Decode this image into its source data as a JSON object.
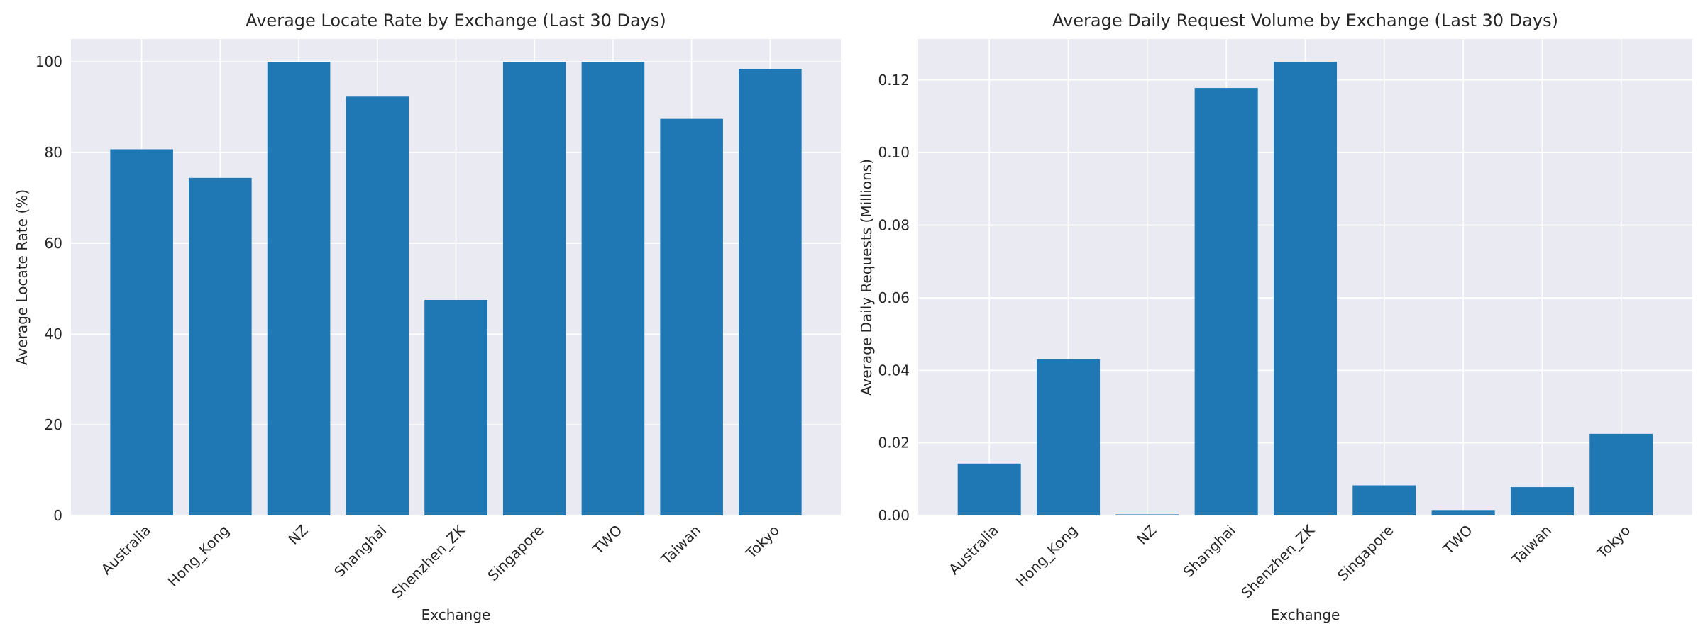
{
  "chart_data": [
    {
      "type": "bar",
      "title": "Average Locate Rate by Exchange (Last 30 Days)",
      "xlabel": "Exchange",
      "ylabel": "Average Locate Rate (%)",
      "categories": [
        "Australia",
        "Hong_Kong",
        "NZ",
        "Shanghai",
        "Shenzhen_ZK",
        "Singapore",
        "TWO",
        "Taiwan",
        "Tokyo"
      ],
      "values": [
        80.7,
        74.4,
        100.0,
        92.3,
        47.5,
        100.0,
        100.0,
        87.4,
        98.4
      ],
      "ylim": [
        0,
        105
      ],
      "yticks": [
        0,
        20,
        40,
        60,
        80,
        100
      ],
      "ytick_labels": [
        "0",
        "20",
        "40",
        "60",
        "80",
        "100"
      ],
      "grid": true,
      "bar_color": "#1f77b4"
    },
    {
      "type": "bar",
      "title": "Average Daily Request Volume by Exchange (Last 30 Days)",
      "xlabel": "Exchange",
      "ylabel": "Average Daily Requests (Millions)",
      "categories": [
        "Australia",
        "Hong_Kong",
        "NZ",
        "Shanghai",
        "Shenzhen_ZK",
        "Singapore",
        "TWO",
        "Taiwan",
        "Tokyo"
      ],
      "values": [
        0.0143,
        0.043,
        0.0003,
        0.1178,
        0.125,
        0.0083,
        0.0015,
        0.0078,
        0.0225
      ],
      "ylim": [
        0,
        0.1313
      ],
      "yticks": [
        0,
        0.02,
        0.04,
        0.06,
        0.08,
        0.1,
        0.12
      ],
      "ytick_labels": [
        "0.00",
        "0.02",
        "0.04",
        "0.06",
        "0.08",
        "0.10",
        "0.12"
      ],
      "grid": true,
      "bar_color": "#1f77b4"
    }
  ]
}
